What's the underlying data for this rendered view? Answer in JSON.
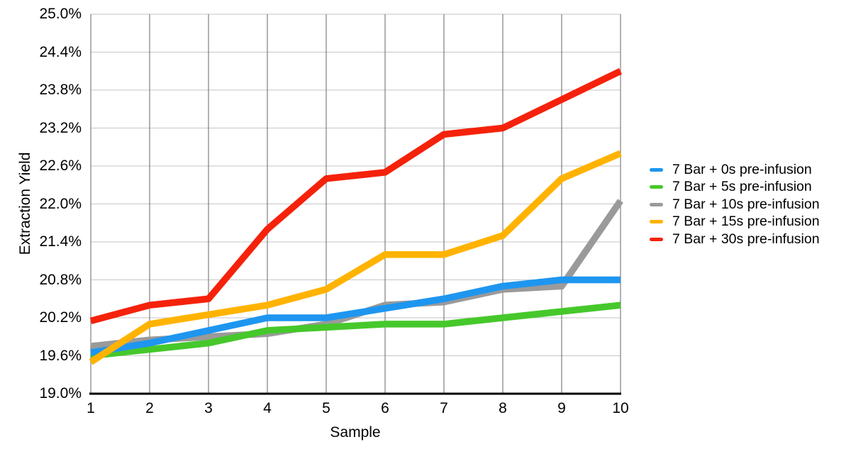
{
  "chart_data": {
    "type": "line",
    "title": "",
    "xlabel": "Sample",
    "ylabel": "Extraction Yield",
    "x": [
      1,
      2,
      3,
      4,
      5,
      6,
      7,
      8,
      9,
      10
    ],
    "x_tick_labels": [
      "1",
      "2",
      "3",
      "4",
      "5",
      "6",
      "7",
      "8",
      "9",
      "10"
    ],
    "ylim": [
      19.0,
      25.0
    ],
    "y_tick_step": 0.6,
    "y_tick_labels": [
      "25.0%",
      "24.4%",
      "23.8%",
      "23.2%",
      "22.6%",
      "22.0%",
      "21.4%",
      "20.8%",
      "20.2%",
      "19.6%",
      "19.0%"
    ],
    "y_unit": "%",
    "grid": true,
    "legend_position": "right",
    "series": [
      {
        "name": "7 Bar + 0s pre-infusion",
        "color": "#1E96F0",
        "values": [
          19.65,
          19.8,
          20.0,
          20.2,
          20.2,
          20.35,
          20.5,
          20.7,
          20.8,
          20.8
        ]
      },
      {
        "name": "7 Bar + 5s pre-infusion",
        "color": "#46C82B",
        "values": [
          19.6,
          19.7,
          19.8,
          20.0,
          20.05,
          20.1,
          20.1,
          20.2,
          20.3,
          20.4
        ]
      },
      {
        "name": "7 Bar + 10s pre-infusion",
        "color": "#9A9A9A",
        "values": [
          19.75,
          19.85,
          19.9,
          19.95,
          20.1,
          20.4,
          20.45,
          20.65,
          20.7,
          22.05
        ]
      },
      {
        "name": "7 Bar + 15s pre-infusion",
        "color": "#FFB300",
        "values": [
          19.5,
          20.1,
          20.25,
          20.4,
          20.65,
          21.2,
          21.2,
          21.5,
          22.4,
          22.8
        ]
      },
      {
        "name": "7 Bar + 30s pre-infusion",
        "color": "#F5220B",
        "values": [
          20.15,
          20.4,
          20.5,
          21.6,
          22.4,
          22.5,
          23.1,
          23.2,
          23.65,
          24.1
        ]
      }
    ]
  },
  "colors": {
    "background": "#FFFFFF",
    "h_gridline": "#C6C6C6",
    "v_gridline": "#666666",
    "axis_line": "#000000",
    "text": "#000000"
  }
}
